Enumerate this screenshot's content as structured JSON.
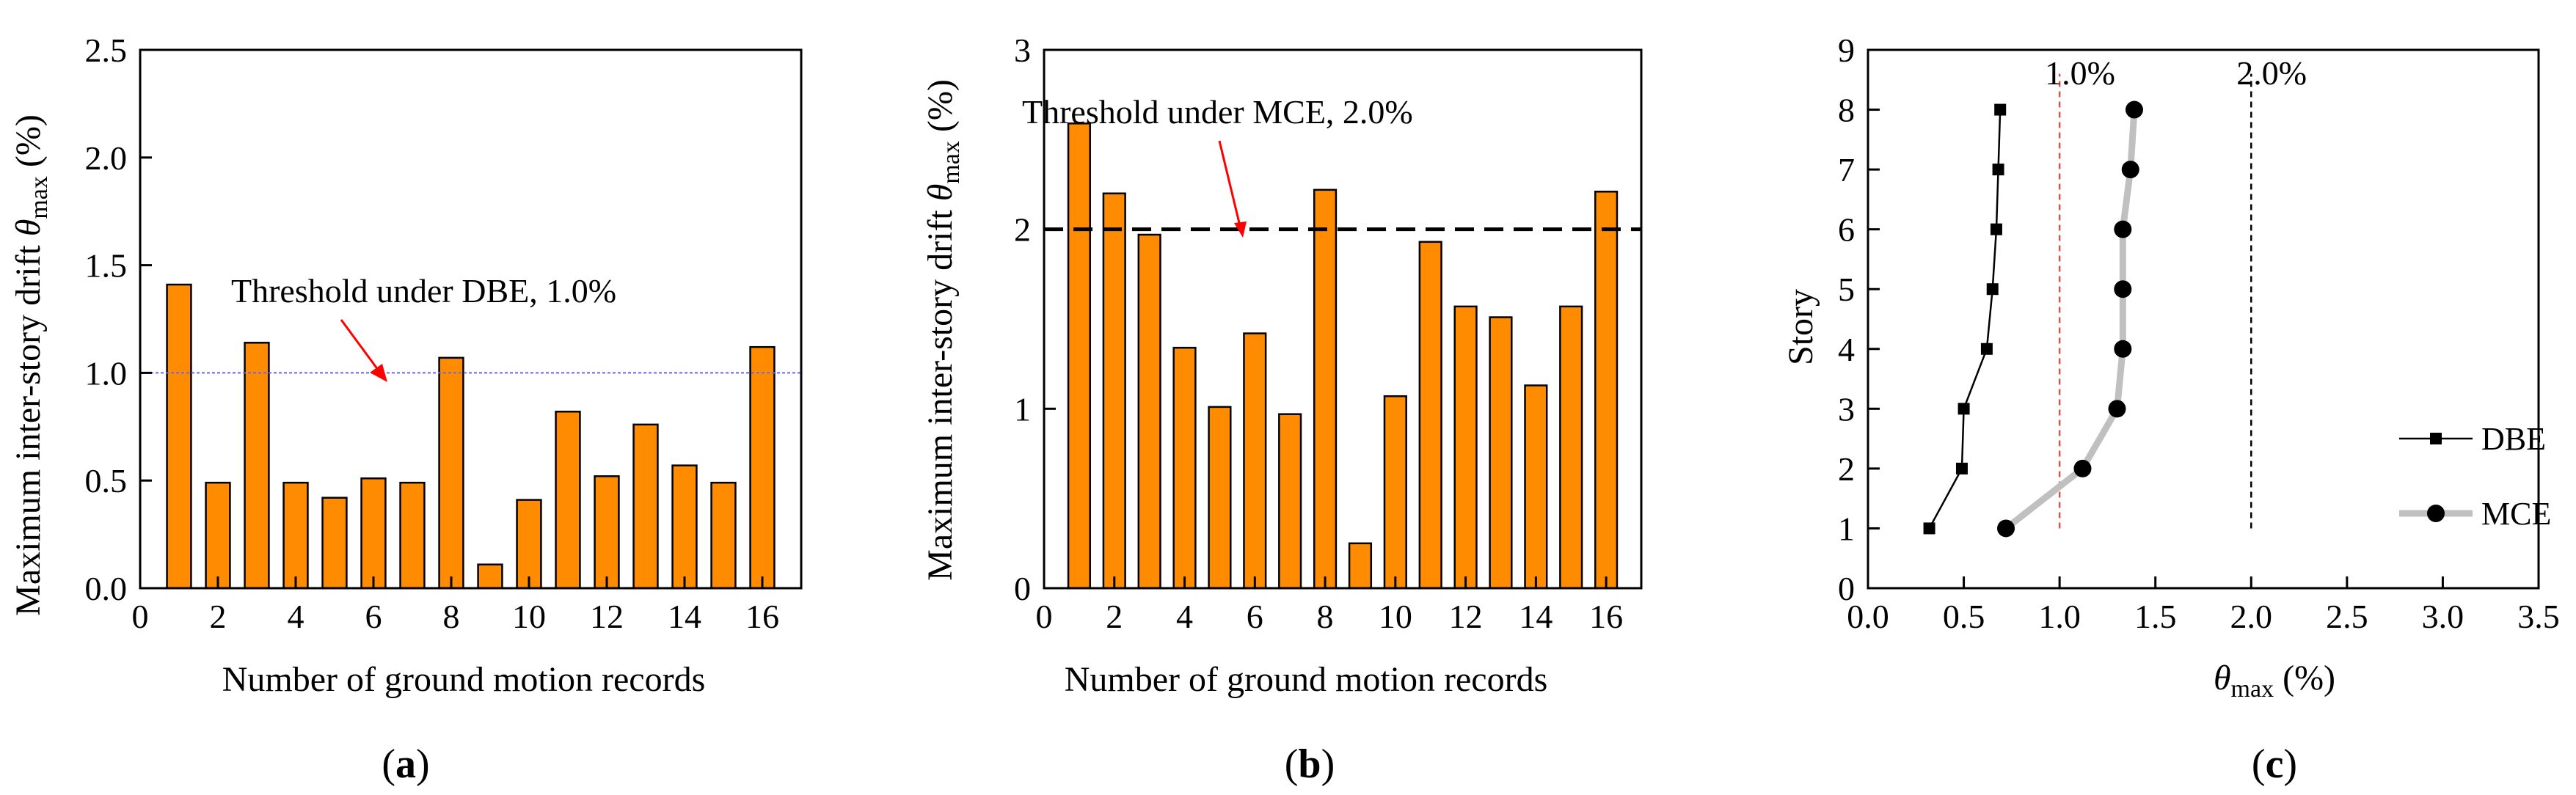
{
  "chart_data": [
    {
      "id": "a",
      "type": "bar",
      "caption": "(a)",
      "xlabel": "Number of ground motion records",
      "ylabel": "Maximum inter-story drift θmax (%)",
      "categories": [
        1,
        2,
        3,
        4,
        5,
        6,
        7,
        8,
        9,
        10,
        11,
        12,
        13,
        14,
        15,
        16
      ],
      "values": [
        1.41,
        0.49,
        1.14,
        0.49,
        0.42,
        0.51,
        0.49,
        1.07,
        0.11,
        0.41,
        0.82,
        0.52,
        0.76,
        0.57,
        0.49,
        1.12
      ],
      "xlim": [
        0,
        17
      ],
      "ylim": [
        0,
        2.5
      ],
      "xticks": [
        "0",
        "2",
        "4",
        "6",
        "8",
        "10",
        "12",
        "14",
        "16"
      ],
      "yticks": [
        "0.0",
        "0.5",
        "1.0",
        "1.5",
        "2.0",
        "2.5"
      ],
      "threshold": {
        "value": 1.0,
        "label": "Threshold under DBE, 1.0%"
      },
      "bar_color": "#ff8c00",
      "threshold_color": "#6666ff"
    },
    {
      "id": "b",
      "type": "bar",
      "caption": "(b)",
      "xlabel": "Number of ground motion records",
      "ylabel": "Maximum inter-story drift θmax (%)",
      "categories": [
        1,
        2,
        3,
        4,
        5,
        6,
        7,
        8,
        9,
        10,
        11,
        12,
        13,
        14,
        15,
        16
      ],
      "values": [
        2.59,
        2.2,
        1.97,
        1.34,
        1.01,
        1.42,
        0.97,
        2.22,
        0.25,
        1.07,
        1.93,
        1.57,
        1.51,
        1.13,
        1.57,
        2.21
      ],
      "xlim": [
        0,
        17
      ],
      "ylim": [
        0,
        3
      ],
      "xticks": [
        "0",
        "2",
        "4",
        "6",
        "8",
        "10",
        "12",
        "14",
        "16"
      ],
      "yticks": [
        "0",
        "1",
        "2",
        "3"
      ],
      "threshold": {
        "value": 2.0,
        "label": "Threshold under MCE, 2.0%"
      },
      "bar_color": "#ff8c00",
      "threshold_color": "#000000"
    },
    {
      "id": "c",
      "type": "line",
      "caption": "(c)",
      "xlabel": "θmax (%)",
      "ylabel": "Story",
      "xlim": [
        0,
        3.5
      ],
      "ylim": [
        0,
        9
      ],
      "xticks": [
        "0.0",
        "0.5",
        "1.0",
        "1.5",
        "2.0",
        "2.5",
        "3.0",
        "3.5"
      ],
      "yticks": [
        "0",
        "1",
        "2",
        "3",
        "4",
        "5",
        "6",
        "7",
        "8",
        "9"
      ],
      "series": [
        {
          "name": "DBE",
          "x": [
            0.32,
            0.49,
            0.5,
            0.62,
            0.65,
            0.67,
            0.68,
            0.69
          ],
          "y": [
            1,
            2,
            3,
            4,
            5,
            6,
            7,
            8
          ],
          "color": "#000000",
          "marker": "square"
        },
        {
          "name": "MCE",
          "x": [
            0.72,
            1.12,
            1.3,
            1.33,
            1.33,
            1.33,
            1.37,
            1.39
          ],
          "y": [
            1,
            2,
            3,
            4,
            5,
            6,
            7,
            8
          ],
          "color": "#c0c0c0",
          "marker": "circle"
        }
      ],
      "reference_lines": [
        {
          "value": 1.0,
          "label": "1.0%",
          "color": "#e05050"
        },
        {
          "value": 2.0,
          "label": "2.0%",
          "color": "#000000"
        }
      ],
      "legend_position": "bottom-right"
    }
  ]
}
